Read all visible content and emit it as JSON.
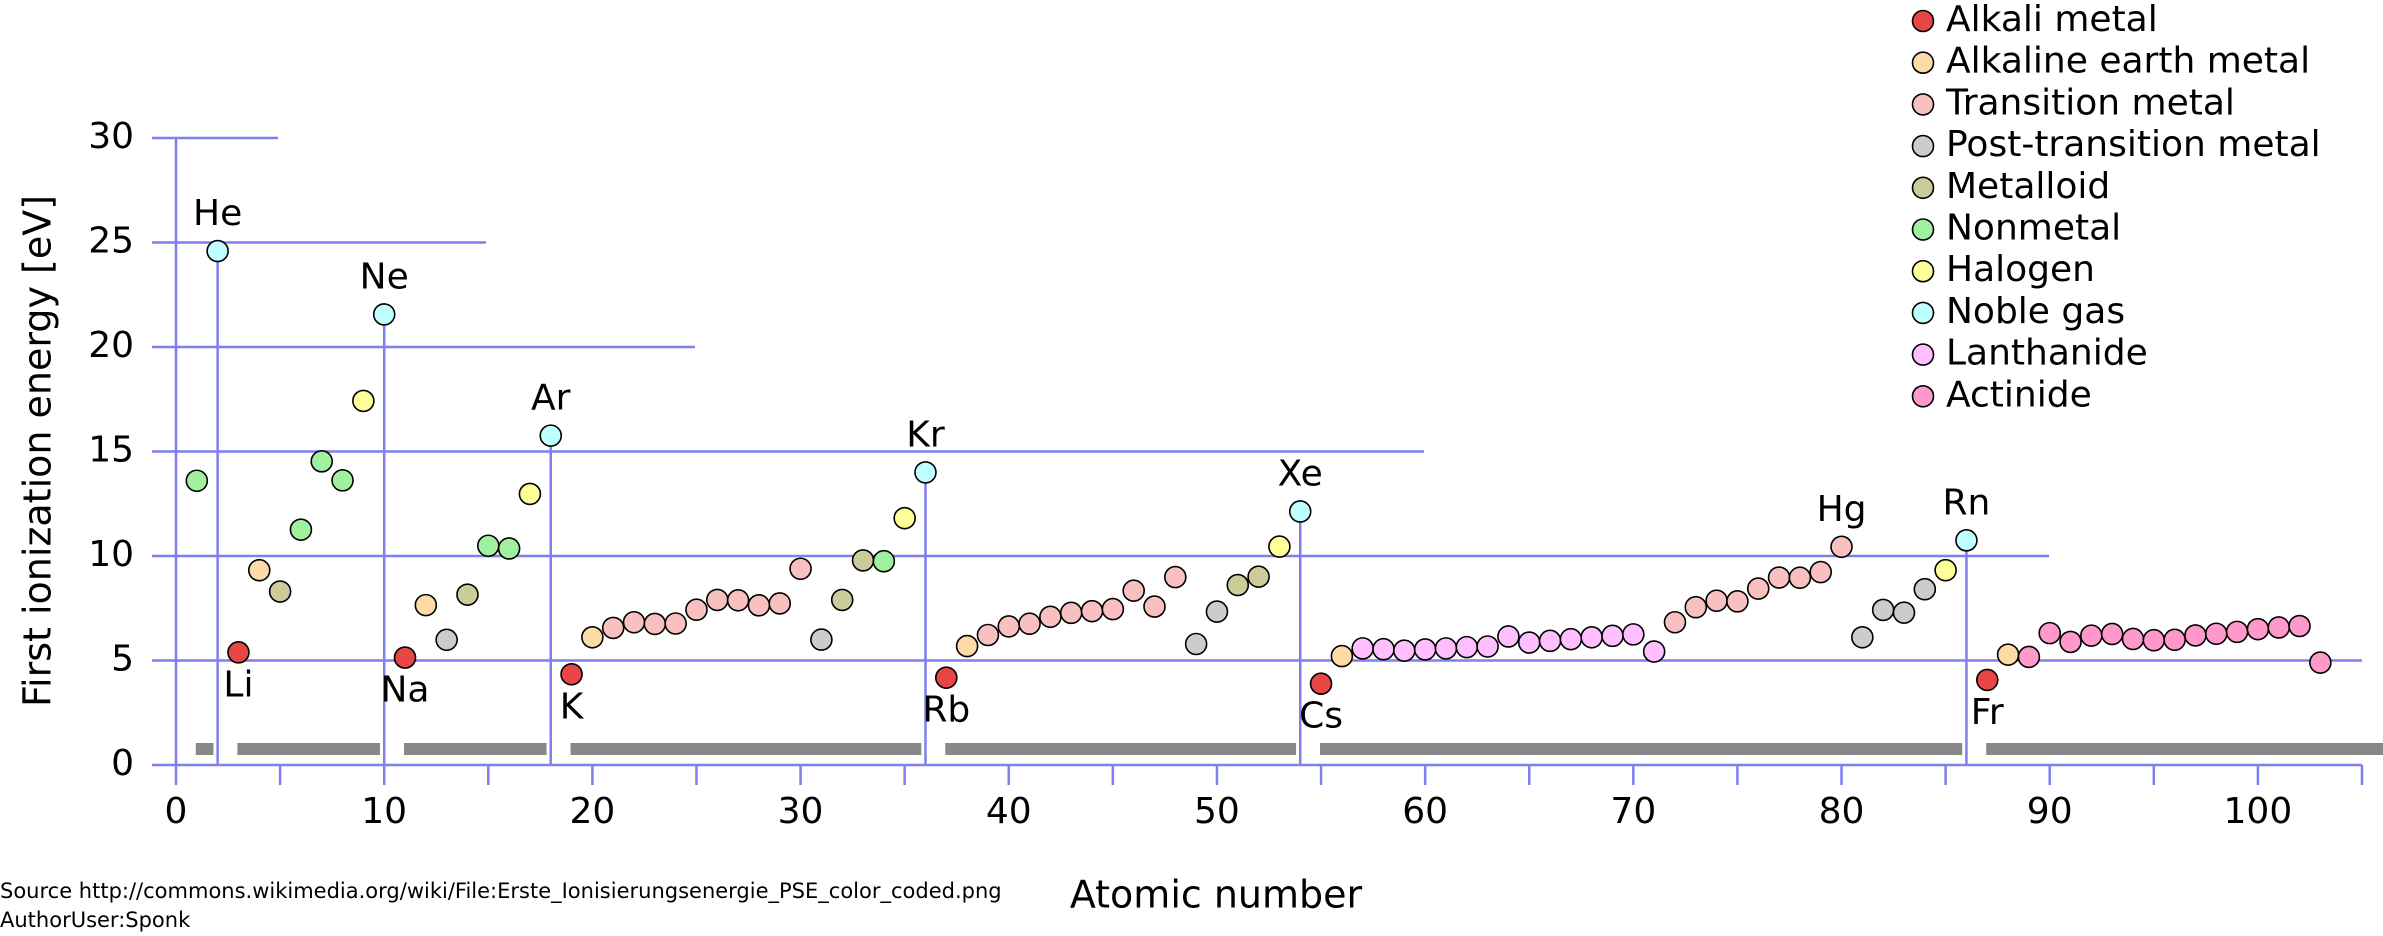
{
  "chart_data": {
    "type": "scatter",
    "xlabel": "Atomic number",
    "ylabel": "First ionization energy [eV]",
    "xlim": [
      0,
      105
    ],
    "ylim": [
      0,
      30
    ],
    "xticks": [
      0,
      10,
      20,
      30,
      40,
      50,
      60,
      70,
      80,
      90,
      100
    ],
    "xminorticks": [
      5,
      15,
      25,
      35,
      45,
      55,
      65,
      75,
      85,
      95,
      105
    ],
    "yticks": [
      0,
      5,
      10,
      15,
      20,
      25,
      30
    ],
    "grid": true,
    "legend": "top-right",
    "series": [
      {
        "name": "Alkali metal",
        "color": "#e84545",
        "x": [
          3,
          11,
          19,
          37,
          55,
          87
        ],
        "values": [
          5.39,
          5.14,
          4.34,
          4.18,
          3.89,
          4.07
        ]
      },
      {
        "name": "Alkaline earth metal",
        "color": "#fcdba6",
        "x": [
          4,
          12,
          20,
          38,
          56,
          88
        ],
        "values": [
          9.32,
          7.65,
          6.11,
          5.69,
          5.21,
          5.28
        ]
      },
      {
        "name": "Transition metal",
        "color": "#f9c0c0",
        "x": [
          21,
          22,
          23,
          24,
          25,
          26,
          27,
          28,
          29,
          30,
          39,
          40,
          41,
          42,
          43,
          44,
          45,
          46,
          47,
          48,
          72,
          73,
          74,
          75,
          76,
          77,
          78,
          79,
          80
        ],
        "values": [
          6.56,
          6.83,
          6.75,
          6.77,
          7.43,
          7.9,
          7.88,
          7.64,
          7.73,
          9.39,
          6.22,
          6.63,
          6.76,
          7.09,
          7.28,
          7.36,
          7.46,
          8.34,
          7.58,
          8.99,
          6.83,
          7.55,
          7.86,
          7.83,
          8.44,
          8.97,
          8.96,
          9.23,
          10.44
        ]
      },
      {
        "name": "Post-transition metal",
        "color": "#cccccc",
        "x": [
          13,
          31,
          49,
          50,
          81,
          82,
          83,
          84
        ],
        "values": [
          5.99,
          6.0,
          5.79,
          7.34,
          6.11,
          7.42,
          7.29,
          8.41
        ]
      },
      {
        "name": "Metalloid",
        "color": "#cccc99",
        "x": [
          5,
          14,
          32,
          33,
          51,
          52
        ],
        "values": [
          8.3,
          8.15,
          7.9,
          9.79,
          8.61,
          9.01
        ]
      },
      {
        "name": "Nonmetal",
        "color": "#a0f0a0",
        "x": [
          1,
          6,
          7,
          8,
          15,
          16,
          34
        ],
        "values": [
          13.6,
          11.26,
          14.53,
          13.62,
          10.49,
          10.36,
          9.75
        ]
      },
      {
        "name": "Halogen",
        "color": "#ffff99",
        "x": [
          9,
          17,
          35,
          53,
          85
        ],
        "values": [
          17.42,
          12.97,
          11.81,
          10.45,
          9.32
        ]
      },
      {
        "name": "Noble gas",
        "color": "#c0ffff",
        "x": [
          2,
          10,
          18,
          36,
          54,
          86
        ],
        "values": [
          24.59,
          21.56,
          15.76,
          14.0,
          12.13,
          10.75
        ]
      },
      {
        "name": "Lanthanide",
        "color": "#ffbfff",
        "x": [
          57,
          58,
          59,
          60,
          61,
          62,
          63,
          64,
          65,
          66,
          67,
          68,
          69,
          70,
          71
        ],
        "values": [
          5.58,
          5.54,
          5.47,
          5.53,
          5.58,
          5.64,
          5.67,
          6.15,
          5.86,
          5.94,
          6.02,
          6.11,
          6.18,
          6.25,
          5.43
        ]
      },
      {
        "name": "Actinide",
        "color": "#ff99cc",
        "x": [
          89,
          90,
          91,
          92,
          93,
          94,
          95,
          96,
          97,
          98,
          99,
          100,
          101,
          102,
          103
        ],
        "values": [
          5.17,
          6.31,
          5.89,
          6.19,
          6.27,
          6.03,
          5.97,
          5.99,
          6.2,
          6.28,
          6.37,
          6.5,
          6.58,
          6.65,
          4.9
        ]
      }
    ],
    "annotations": [
      {
        "text": "He",
        "x": 2,
        "position": "above"
      },
      {
        "text": "Li",
        "x": 3,
        "position": "below"
      },
      {
        "text": "Ne",
        "x": 10,
        "position": "above"
      },
      {
        "text": "Na",
        "x": 11,
        "position": "below"
      },
      {
        "text": "Ar",
        "x": 18,
        "position": "above"
      },
      {
        "text": "K",
        "x": 19,
        "position": "below"
      },
      {
        "text": "Kr",
        "x": 36,
        "position": "above"
      },
      {
        "text": "Rb",
        "x": 37,
        "position": "below"
      },
      {
        "text": "Xe",
        "x": 54,
        "position": "above"
      },
      {
        "text": "Cs",
        "x": 55,
        "position": "below"
      },
      {
        "text": "Hg",
        "x": 80,
        "position": "above"
      },
      {
        "text": "Rn",
        "x": 86,
        "position": "above"
      },
      {
        "text": "Fr",
        "x": 87,
        "position": "below"
      }
    ],
    "source": "Source http://commons.wikimedia.org/wiki/File:Erste_Ionisierungsenergie_PSE_color_coded.png",
    "author": "AuthorUser:Sponk"
  }
}
